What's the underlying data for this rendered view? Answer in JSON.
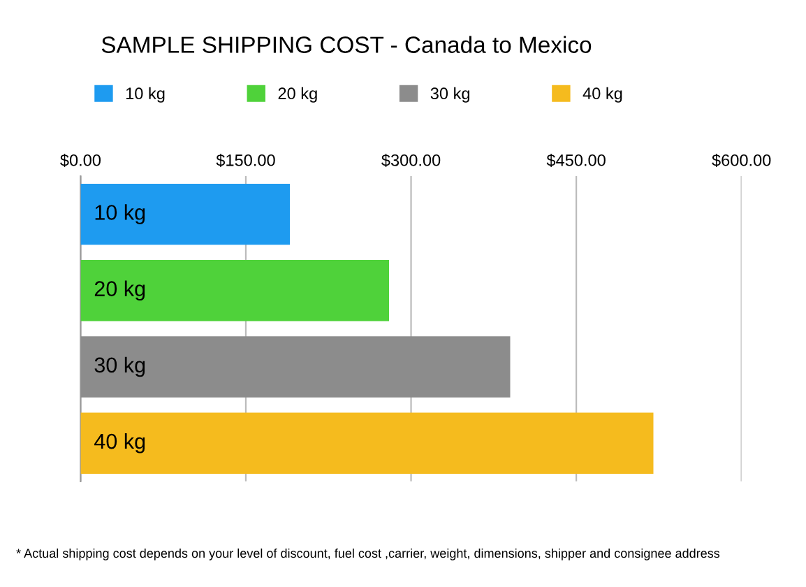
{
  "chart_data": {
    "type": "bar",
    "orientation": "horizontal",
    "title": "SAMPLE SHIPPING COST - Canada to Mexico",
    "categories": [
      "10 kg",
      "20 kg",
      "30 kg",
      "40 kg"
    ],
    "series": [
      {
        "name": "10 kg",
        "color": "#1e9bf0",
        "values": [
          190,
          null,
          null,
          null
        ]
      },
      {
        "name": "20 kg",
        "color": "#4fd23a",
        "values": [
          null,
          280,
          null,
          null
        ]
      },
      {
        "name": "30 kg",
        "color": "#8c8c8c",
        "values": [
          null,
          null,
          390,
          null
        ]
      },
      {
        "name": "40 kg",
        "color": "#f5bb1e",
        "values": [
          null,
          null,
          null,
          520
        ]
      }
    ],
    "xlim": [
      0,
      600
    ],
    "xticks": [
      {
        "value": 0,
        "label": "$0.00"
      },
      {
        "value": 150,
        "label": "$150.00"
      },
      {
        "value": 300,
        "label": "$300.00"
      },
      {
        "value": 450,
        "label": "$450.00"
      },
      {
        "value": 600,
        "label": "$600.00"
      }
    ],
    "grid": "x",
    "legend": "top",
    "annotations": [
      "* Actual shipping cost depends on your level of discount, fuel cost ,carrier, weight, dimensions, shipper and consignee address"
    ]
  }
}
